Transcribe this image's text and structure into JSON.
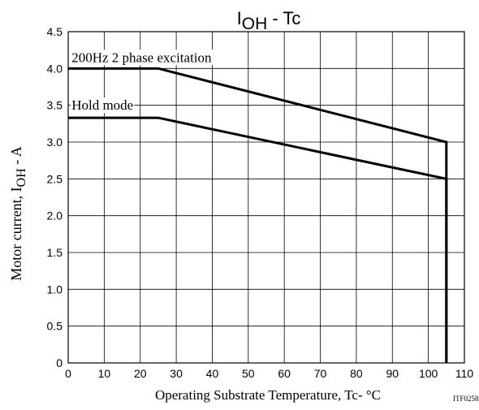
{
  "chart_data": {
    "type": "line",
    "title": {
      "main": "I",
      "sub": "OH",
      "suffix": " - Tc"
    },
    "xlabel": "Operating Substrate Temperature, Tc- °C",
    "ylabel": {
      "main": "Motor current, I",
      "sub": "OH",
      "suffix": " - A"
    },
    "xlim": [
      0,
      110
    ],
    "ylim": [
      0,
      4.5
    ],
    "x_ticks": [
      0,
      10,
      20,
      30,
      40,
      50,
      60,
      70,
      80,
      90,
      100,
      110
    ],
    "x_tick_labels": [
      "0",
      "10",
      "20",
      "30",
      "40",
      "50",
      "60",
      "70",
      "80",
      "90",
      "100",
      "110"
    ],
    "y_ticks": [
      0,
      0.5,
      1.0,
      1.5,
      2.0,
      2.5,
      3.0,
      3.5,
      4.0,
      4.5
    ],
    "y_tick_labels": [
      "0",
      "0.5",
      "1.0",
      "1.5",
      "2.0",
      "2.5",
      "3.0",
      "3.5",
      "4.0",
      "4.5"
    ],
    "grid": true,
    "series": [
      {
        "name": "200Hz 2 phase excitation",
        "x": [
          0,
          25,
          105,
          105
        ],
        "y": [
          4.0,
          4.0,
          3.0,
          0
        ]
      },
      {
        "name": "Hold mode",
        "x": [
          0,
          25,
          105,
          105
        ],
        "y": [
          3.33,
          3.33,
          2.5,
          0
        ]
      }
    ],
    "annotations": [
      {
        "text": "200Hz 2 phase excitation",
        "x": 0.5,
        "y": 4.1
      },
      {
        "text": "Hold mode",
        "x": 0.5,
        "y": 3.45
      }
    ],
    "figure_id": "ITF02588"
  }
}
